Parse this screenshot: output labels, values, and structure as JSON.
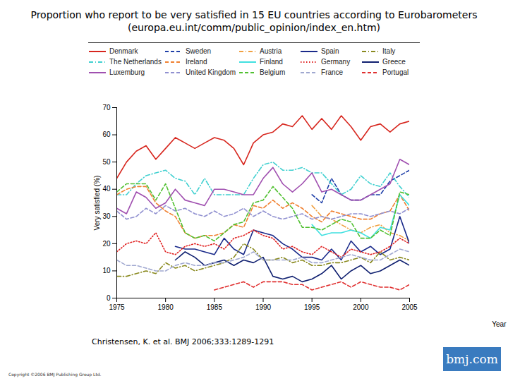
{
  "chart_data": {
    "type": "line",
    "title": "Proportion who report to be very satisfied in 15 EU countries according to Eurobarometers",
    "subtitle": "(europa.eu.int/comm/public_opinion/index_en.htm)",
    "x_label": "Year",
    "y_label": "Very satisfied (%)",
    "annotations": [
      "Christensen, K. et al. BMJ 2006;333:1289-1291",
      "Copyright ©2006 BMJ Publishing Group Ltd.",
      "bmj.com"
    ],
    "x": [
      1975,
      1976,
      1977,
      1978,
      1979,
      1980,
      1981,
      1982,
      1983,
      1984,
      1985,
      1986,
      1987,
      1988,
      1989,
      1990,
      1991,
      1992,
      1993,
      1994,
      1995,
      1996,
      1997,
      1998,
      1999,
      2000,
      2001,
      2002,
      2003,
      2004,
      2005
    ],
    "xlim": [
      1975,
      2005
    ],
    "xticks": [
      1975,
      1980,
      1985,
      1990,
      1995,
      2000,
      2005
    ],
    "ylim": [
      0,
      70
    ],
    "yticks": [
      0,
      10,
      20,
      30,
      40,
      50,
      60,
      70
    ],
    "grid": false,
    "legend": "top",
    "series": [
      {
        "name": "Denmark",
        "color": "#d7261e",
        "line_style": "solid",
        "values": [
          44,
          50,
          54,
          56,
          51,
          55,
          59,
          57,
          55,
          57,
          59,
          58,
          55,
          49,
          57,
          60,
          61,
          64,
          63,
          67,
          62,
          66,
          62,
          67,
          63,
          58,
          63,
          64,
          61,
          64,
          65
        ]
      },
      {
        "name": "Sweden",
        "color": "#1f3fa8",
        "line_style": "dashed",
        "values": [
          null,
          null,
          null,
          null,
          null,
          null,
          null,
          null,
          null,
          null,
          null,
          null,
          null,
          null,
          null,
          null,
          null,
          null,
          null,
          null,
          38,
          35,
          44,
          38,
          36,
          36,
          38,
          38,
          43,
          45,
          47
        ]
      },
      {
        "name": "Austria",
        "color": "#f0a040",
        "line_style": "dashdot",
        "values": [
          null,
          null,
          null,
          null,
          null,
          null,
          null,
          null,
          null,
          null,
          null,
          null,
          null,
          null,
          null,
          null,
          null,
          null,
          null,
          null,
          34,
          30,
          29,
          27,
          25,
          24,
          26,
          27,
          24,
          23,
          21
        ]
      },
      {
        "name": "Spain",
        "color": "#1a2a8a",
        "line_style": "solid",
        "values": [
          null,
          null,
          null,
          null,
          null,
          null,
          19,
          18,
          18,
          17,
          16,
          22,
          18,
          16,
          25,
          24,
          23,
          20,
          18,
          15,
          15,
          14,
          18,
          14,
          21,
          17,
          19,
          16,
          18,
          30,
          20
        ]
      },
      {
        "name": "Italy",
        "color": "#8a8a20",
        "line_style": "dashdot",
        "values": [
          8,
          8,
          9,
          10,
          9,
          13,
          11,
          12,
          10,
          11,
          12,
          13,
          15,
          20,
          18,
          14,
          14,
          15,
          13,
          14,
          12,
          12,
          13,
          13,
          14,
          15,
          13,
          17,
          14,
          15,
          14
        ]
      },
      {
        "name": "The Netherlands",
        "color": "#40d0d0",
        "line_style": "dashdot",
        "values": [
          38,
          38,
          42,
          45,
          46,
          47,
          44,
          43,
          38,
          44,
          38,
          38,
          38,
          38,
          44,
          49,
          50,
          47,
          47,
          48,
          46,
          46,
          42,
          38,
          40,
          45,
          42,
          41,
          46,
          41,
          37
        ]
      },
      {
        "name": "Ireland",
        "color": "#f08030",
        "line_style": "dashed",
        "values": [
          38,
          40,
          41,
          41,
          35,
          32,
          30,
          24,
          22,
          23,
          23,
          24,
          27,
          26,
          34,
          33,
          36,
          33,
          35,
          33,
          30,
          28,
          32,
          31,
          30,
          29,
          29,
          31,
          32,
          38,
          32
        ]
      },
      {
        "name": "Finland",
        "color": "#40e0e0",
        "line_style": "solid",
        "values": [
          null,
          null,
          null,
          null,
          null,
          null,
          null,
          null,
          null,
          null,
          null,
          null,
          null,
          null,
          null,
          null,
          null,
          null,
          null,
          null,
          27,
          23,
          24,
          24,
          25,
          24,
          22,
          26,
          25,
          38,
          34
        ]
      },
      {
        "name": "Germany",
        "color": "#e02020",
        "line_style": "dotted",
        "values": [
          17,
          20,
          21,
          20,
          24,
          17,
          16,
          19,
          20,
          19,
          20,
          18,
          22,
          23,
          25,
          23,
          22,
          18,
          19,
          17,
          16,
          19,
          17,
          15,
          18,
          17,
          16,
          17,
          19,
          22,
          20
        ]
      },
      {
        "name": "Greece",
        "color": "#102070",
        "line_style": "solid",
        "values": [
          null,
          null,
          null,
          null,
          null,
          null,
          14,
          17,
          15,
          12,
          13,
          14,
          12,
          14,
          13,
          15,
          8,
          7,
          8,
          6,
          7,
          9,
          12,
          7,
          10,
          12,
          9,
          10,
          12,
          14,
          12
        ]
      },
      {
        "name": "Luxemburg",
        "color": "#a050b0",
        "line_style": "solid",
        "values": [
          33,
          31,
          39,
          37,
          33,
          35,
          40,
          36,
          35,
          34,
          40,
          40,
          39,
          38,
          38,
          44,
          48,
          42,
          39,
          42,
          46,
          39,
          40,
          38,
          36,
          36,
          38,
          40,
          42,
          51,
          49
        ]
      },
      {
        "name": "United Kingdom",
        "color": "#9090d0",
        "line_style": "dashed",
        "values": [
          32,
          29,
          30,
          33,
          31,
          34,
          32,
          33,
          31,
          30,
          32,
          30,
          31,
          33,
          30,
          32,
          30,
          29,
          30,
          31,
          29,
          30,
          29,
          30,
          31,
          31,
          30,
          31,
          32,
          31,
          33
        ]
      },
      {
        "name": "Belgium",
        "color": "#50c030",
        "line_style": "dashed",
        "values": [
          39,
          42,
          42,
          42,
          36,
          42,
          33,
          24,
          22,
          23,
          21,
          24,
          27,
          28,
          35,
          36,
          41,
          37,
          33,
          26,
          26,
          25,
          27,
          29,
          28,
          22,
          22,
          25,
          23,
          39,
          38
        ]
      },
      {
        "name": "France",
        "color": "#a0a8d0",
        "line_style": "dashed",
        "values": [
          14,
          12,
          12,
          11,
          10,
          10,
          12,
          13,
          12,
          12,
          13,
          13,
          14,
          15,
          17,
          14,
          14,
          14,
          14,
          15,
          13,
          13,
          14,
          15,
          16,
          15,
          14,
          14,
          16,
          18,
          17
        ]
      },
      {
        "name": "Portugal",
        "color": "#e03030",
        "line_style": "dashed",
        "values": [
          null,
          null,
          null,
          null,
          null,
          null,
          null,
          null,
          null,
          null,
          3,
          4,
          5,
          6,
          4,
          6,
          6,
          6,
          5,
          5,
          3,
          4,
          5,
          6,
          4,
          6,
          5,
          4,
          4,
          3,
          5
        ]
      }
    ]
  }
}
